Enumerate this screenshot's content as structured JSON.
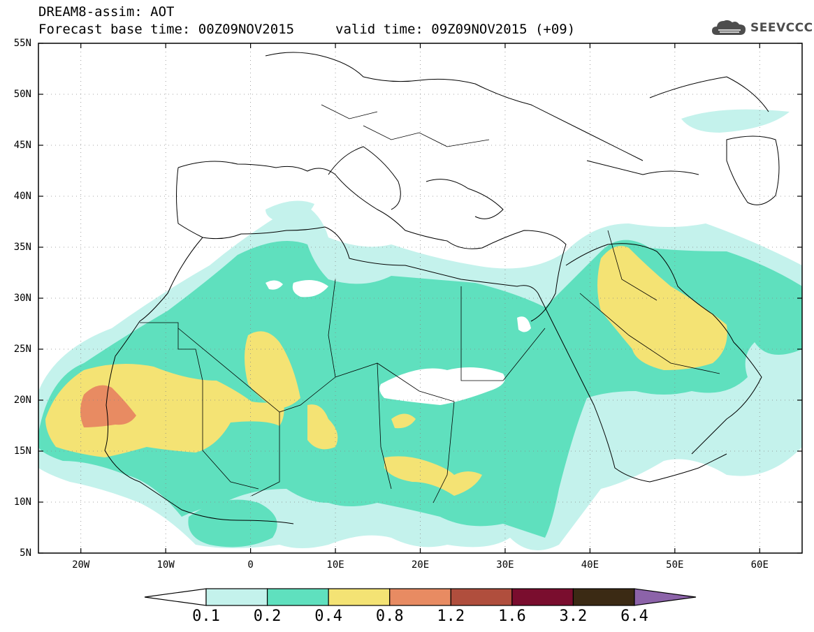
{
  "header": {
    "title_line1": "DREAM8-assim: AOT",
    "forecast_base": "Forecast base time: 00Z09NOV2015",
    "valid_time": "valid time: 09Z09NOV2015 (+09)",
    "logo_text": "SEEVCCC"
  },
  "map": {
    "lon_range": [
      -25,
      65
    ],
    "lat_range": [
      5,
      55
    ],
    "lat_labels": [
      "55N",
      "50N",
      "45N",
      "40N",
      "35N",
      "30N",
      "25N",
      "20N",
      "15N",
      "10N",
      "5N"
    ],
    "lon_labels": [
      "20W",
      "10W",
      "0",
      "10E",
      "20E",
      "30E",
      "40E",
      "50E",
      "60E"
    ],
    "grid": "dotted",
    "field": "AOT",
    "max_region": "Mauritania / Western Sahara coast"
  },
  "colorbar": {
    "levels": [
      "0.1",
      "0.2",
      "0.4",
      "0.8",
      "1.2",
      "1.6",
      "3.2",
      "6.4"
    ],
    "colors": [
      "#c4f2ec",
      "#5fe0be",
      "#f4e374",
      "#e88b62",
      "#b04e3d",
      "#7a0d2e",
      "#3b2a14",
      "#8c63a9"
    ],
    "under_color": "#ffffff",
    "over_color": "#8c63a9"
  }
}
